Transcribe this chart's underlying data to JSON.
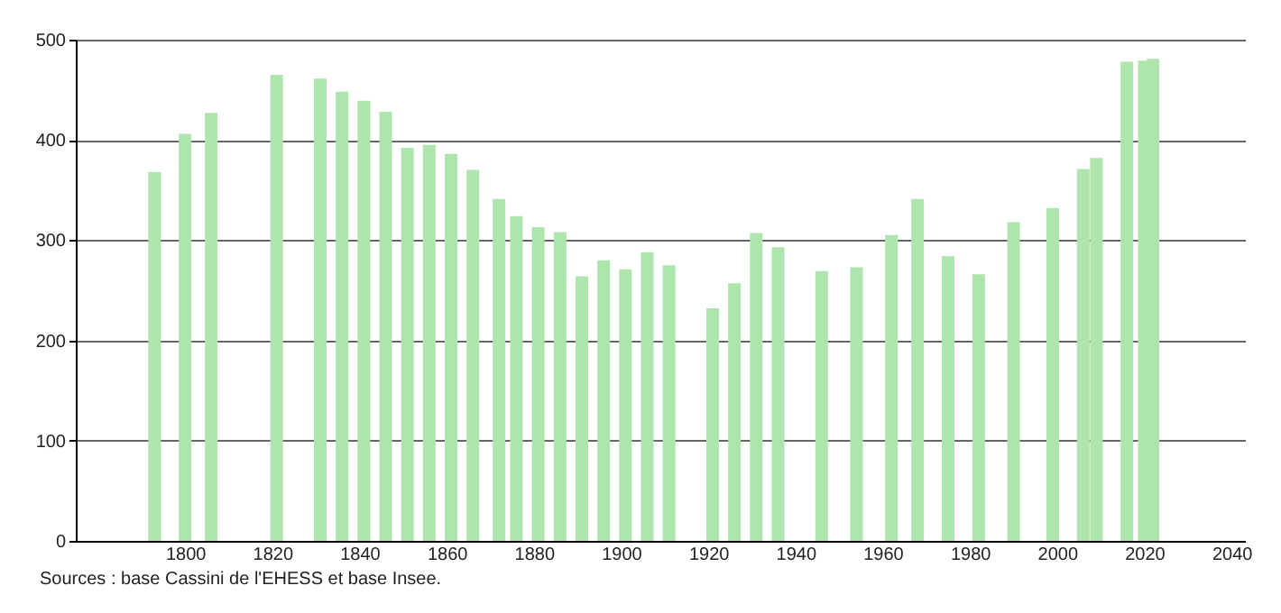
{
  "chart_data": {
    "type": "bar",
    "x": [
      1793,
      1800,
      1806,
      1821,
      1831,
      1836,
      1841,
      1846,
      1851,
      1856,
      1861,
      1866,
      1872,
      1876,
      1881,
      1886,
      1891,
      1896,
      1901,
      1906,
      1911,
      1921,
      1926,
      1931,
      1936,
      1946,
      1954,
      1962,
      1968,
      1975,
      1982,
      1990,
      1999,
      2006,
      2009,
      2016,
      2020,
      2022
    ],
    "values": [
      368,
      406,
      427,
      465,
      461,
      448,
      439,
      428,
      392,
      395,
      386,
      370,
      341,
      324,
      313,
      308,
      264,
      280,
      271,
      288,
      275,
      232,
      257,
      307,
      293,
      269,
      273,
      305,
      341,
      284,
      266,
      318,
      332,
      371,
      382,
      478,
      479,
      481
    ],
    "color": "#aee5ad",
    "xlim": [
      1777,
      2041
    ],
    "xticks": [
      1800,
      1820,
      1840,
      1860,
      1880,
      1900,
      1920,
      1940,
      1960,
      1980,
      2000,
      2020,
      2040
    ],
    "ylim": [
      0,
      500
    ],
    "yticks": [
      0,
      100,
      200,
      300,
      400,
      500
    ],
    "grid": "y",
    "annotations": [
      "Sources : base Cassini de l'EHESS et base Insee."
    ]
  }
}
